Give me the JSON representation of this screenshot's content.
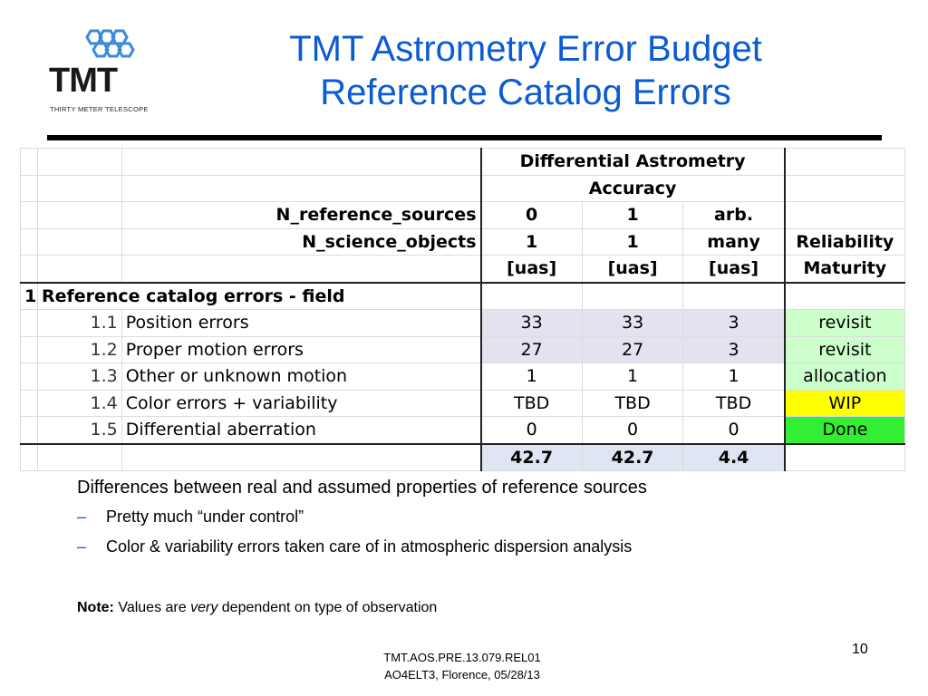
{
  "logo": {
    "text": "TMT",
    "subtitle": "THIRTY METER TELESCOPE"
  },
  "title": {
    "line1": "TMT Astrometry Error Budget",
    "line2": "Reference Catalog Errors"
  },
  "table": {
    "header": {
      "group_line1": "Differential Astrometry",
      "group_line2": "Accuracy",
      "n_ref_label": "N_reference_sources",
      "n_ref_values": [
        "0",
        "1",
        "arb."
      ],
      "n_sci_label": "N_science_objects",
      "n_sci_values": [
        "1",
        "1",
        "many"
      ],
      "unit": [
        "[uas]",
        "[uas]",
        "[uas]"
      ],
      "reliability": "Reliability",
      "maturity": "Maturity"
    },
    "section": {
      "num": "1",
      "label": "Reference catalog errors - field"
    },
    "rows": [
      {
        "num": "1.1",
        "label": "Position errors",
        "v": [
          "33",
          "33",
          "3"
        ],
        "status": "revisit"
      },
      {
        "num": "1.2",
        "label": "Proper motion errors",
        "v": [
          "27",
          "27",
          "3"
        ],
        "status": "revisit"
      },
      {
        "num": "1.3",
        "label": "Other or unknown motion",
        "v": [
          "1",
          "1",
          "1"
        ],
        "status": "allocation"
      },
      {
        "num": "1.4",
        "label": "Color errors + variability",
        "v": [
          "TBD",
          "TBD",
          "TBD"
        ],
        "status": "WIP"
      },
      {
        "num": "1.5",
        "label": "Differential aberration",
        "v": [
          "0",
          "0",
          "0"
        ],
        "status": "Done"
      }
    ],
    "totals": [
      "42.7",
      "42.7",
      "4.4"
    ],
    "colors": {
      "lavender": "#e6e1ef",
      "light_green": "#ccffcc",
      "yellow": "#ffff00",
      "green": "#33ee33",
      "light_blue": "#dde6f2"
    }
  },
  "bullets": {
    "main": "Differences between real and assumed properties of reference sources",
    "dash": "–",
    "items": [
      "Pretty much “under control”",
      "Color & variability errors taken care of in atmospheric dispersion analysis"
    ]
  },
  "note": {
    "label": "Note:",
    "pre": " Values are ",
    "emph": "very",
    "post": " dependent on type of observation"
  },
  "footer": {
    "line1": "TMT.AOS.PRE.13.079.REL01",
    "line2": "AO4ELT3, Florence, 05/28/13"
  },
  "page_number": "10",
  "title_color": "#0b5bd3"
}
